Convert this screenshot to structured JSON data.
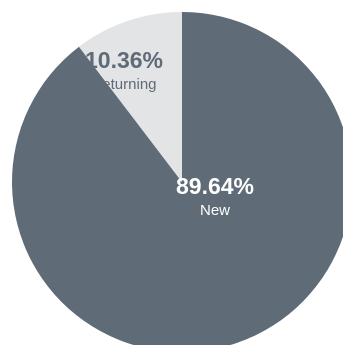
{
  "chart_data": {
    "type": "pie",
    "slices": [
      {
        "label": "New",
        "value": 89.64,
        "value_text": "89.64%",
        "color": "#5f6b77",
        "text_color": "#ffffff"
      },
      {
        "label": "Returning",
        "value": 10.36,
        "value_text": "10.36%",
        "color": "#e3e4e6",
        "text_color": "#5f6b77"
      }
    ],
    "start": "top (12 o'clock)",
    "direction": "clockwise",
    "legend": "none"
  }
}
